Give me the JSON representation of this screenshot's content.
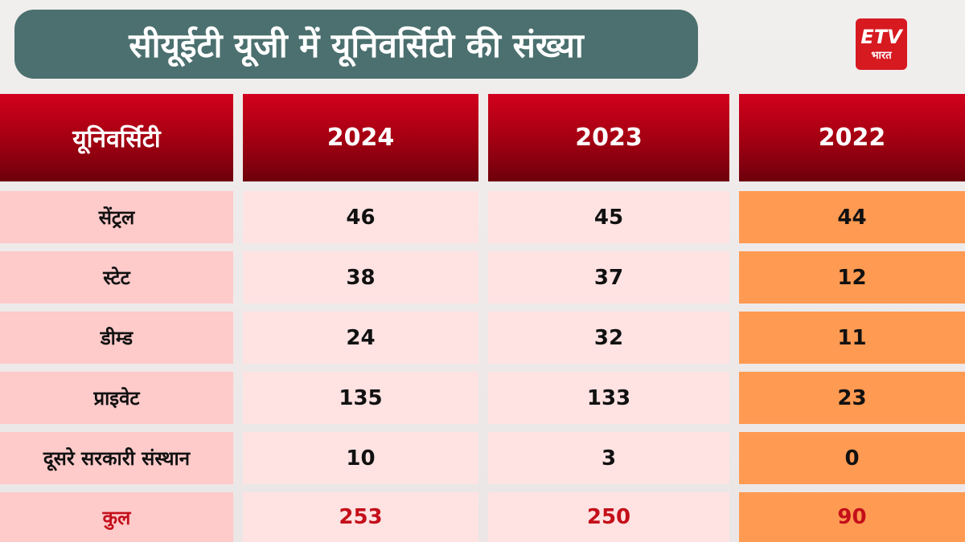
{
  "title": "सीयूईटी यूजी में यूनिवर्सिटी की संख्या",
  "logo": {
    "text": "ETV",
    "subtext": "भारत",
    "color": "#d71920"
  },
  "colors": {
    "header": "#a50012",
    "label_cell": "#ffcaca",
    "value_cell": "#ffe2e2",
    "highlight_2022": "#ff9a52",
    "total_text": "#c40f1a",
    "title_bg": "#4b706f"
  },
  "chart_data": {
    "type": "table",
    "title": "सीयूईटी यूजी में यूनिवर्सिटी की संख्या",
    "columns": [
      "यूनिवर्सिटी",
      "2024",
      "2023",
      "2022"
    ],
    "rows": [
      [
        "सेंट्रल",
        "46",
        "45",
        "44"
      ],
      [
        "स्टेट",
        "38",
        "37",
        "12"
      ],
      [
        "डीम्ड",
        "24",
        "32",
        "11"
      ],
      [
        "प्राइवेट",
        "135",
        "133",
        "23"
      ],
      [
        "दूसरे सरकारी संस्थान",
        "10",
        "3",
        "0"
      ],
      [
        "कुल",
        "253",
        "250",
        "90"
      ]
    ]
  }
}
